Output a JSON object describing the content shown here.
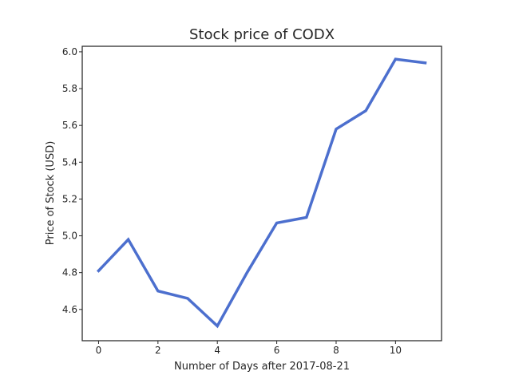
{
  "chart_data": {
    "type": "line",
    "title": "Stock price of CODX",
    "xlabel": "Number of Days after 2017-08-21",
    "ylabel": "Price of Stock (USD)",
    "x": [
      0,
      1,
      2,
      3,
      4,
      5,
      6,
      7,
      8,
      9,
      10,
      11
    ],
    "series": [
      {
        "values": [
          4.81,
          4.98,
          4.7,
          4.66,
          4.51,
          4.8,
          5.07,
          5.1,
          5.58,
          5.68,
          5.96,
          5.94
        ],
        "color": "#4c6fce"
      }
    ],
    "xlim": [
      -0.55,
      11.55
    ],
    "ylim": [
      4.43,
      6.03
    ],
    "xticks": [
      0,
      2,
      4,
      6,
      8,
      10
    ],
    "yticks": [
      4.6,
      4.8,
      5.0,
      5.2,
      5.4,
      5.6,
      5.8,
      6.0
    ],
    "ytick_labels": [
      "4.6",
      "4.8",
      "5.0",
      "5.2",
      "5.4",
      "5.6",
      "5.8",
      "6.0"
    ],
    "grid": false,
    "legend": "none"
  }
}
